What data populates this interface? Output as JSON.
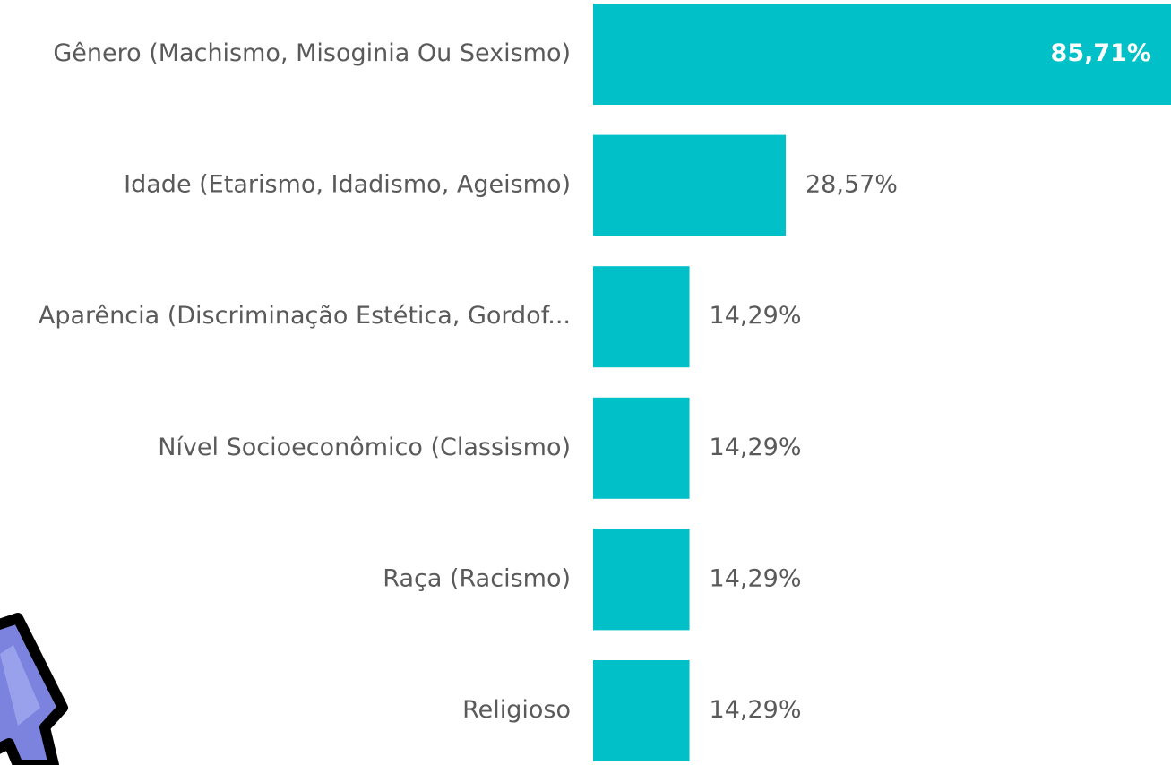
{
  "chart_data": {
    "type": "barh",
    "categories": [
      "Gênero (Machismo, Misoginia Ou Sexismo)",
      "Idade (Etarismo, Idadismo, Ageismo)",
      "Aparência (Discriminação Estética, Gordof...",
      "Nível Socioeconômico (Classismo)",
      "Raça (Racismo)",
      "Religioso"
    ],
    "values": [
      85.71,
      28.57,
      14.29,
      14.29,
      14.29,
      14.29
    ],
    "value_labels": [
      "85,71%",
      "28,57%",
      "14,29%",
      "14,29%",
      "14,29%",
      "14,29%"
    ],
    "color": "#01c0c8"
  }
}
